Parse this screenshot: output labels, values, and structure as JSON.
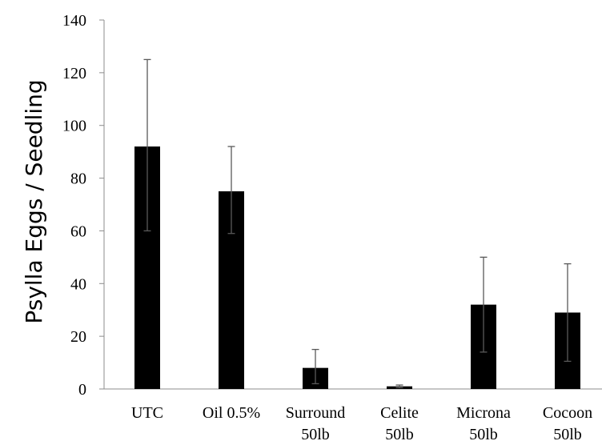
{
  "chart_data": {
    "type": "bar",
    "title": "",
    "xlabel": "",
    "ylabel": "Psylla Eggs / Seedling",
    "ylim": [
      0,
      140
    ],
    "yticks": [
      0,
      20,
      40,
      60,
      80,
      100,
      120,
      140
    ],
    "grid": false,
    "categories": [
      [
        "UTC"
      ],
      [
        "Oil 0.5%"
      ],
      [
        "Surround",
        "50lb"
      ],
      [
        "Celite",
        "50lb"
      ],
      [
        "Microna",
        "50lb"
      ],
      [
        "Cocoon",
        "50lb"
      ]
    ],
    "values": [
      92,
      75,
      8,
      1,
      32,
      29
    ],
    "error_low": [
      60,
      59,
      2,
      0.5,
      14,
      10.5
    ],
    "error_high": [
      125,
      92,
      15,
      1.5,
      50,
      47.5
    ],
    "bar_color": "#000000",
    "error_color": "#595959"
  }
}
